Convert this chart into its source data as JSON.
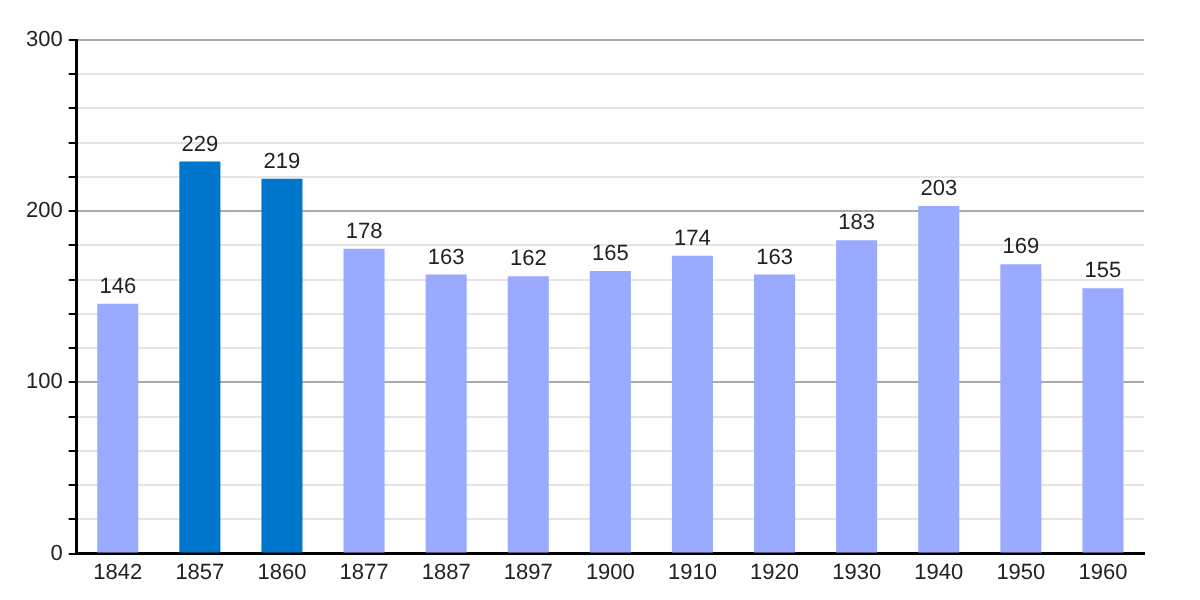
{
  "chart_data": {
    "type": "bar",
    "categories": [
      "1842",
      "1857",
      "1860",
      "1877",
      "1887",
      "1897",
      "1900",
      "1910",
      "1920",
      "1930",
      "1940",
      "1950",
      "1960"
    ],
    "values": [
      146,
      229,
      219,
      178,
      163,
      162,
      165,
      174,
      163,
      183,
      203,
      169,
      155
    ],
    "colors": [
      "#99aaff",
      "#0077cc",
      "#0077cc",
      "#99aaff",
      "#99aaff",
      "#99aaff",
      "#99aaff",
      "#99aaff",
      "#99aaff",
      "#99aaff",
      "#99aaff",
      "#99aaff",
      "#99aaff"
    ],
    "ylim": [
      0,
      300
    ],
    "yticks": [
      0,
      {
        "value": 20,
        "label": null
      },
      {
        "value": 40,
        "label": null
      },
      {
        "value": 60,
        "label": null
      },
      {
        "value": 80,
        "label": null
      },
      100,
      {
        "value": 120,
        "label": null
      },
      {
        "value": 140,
        "label": null
      },
      {
        "value": 160,
        "label": null
      },
      {
        "value": 180,
        "label": null
      },
      200,
      {
        "value": 220,
        "label": null
      },
      {
        "value": 240,
        "label": null
      },
      {
        "value": 260,
        "label": null
      },
      {
        "value": 280,
        "label": null
      },
      300
    ],
    "grid": "y",
    "data_labels": true,
    "legend": false
  }
}
